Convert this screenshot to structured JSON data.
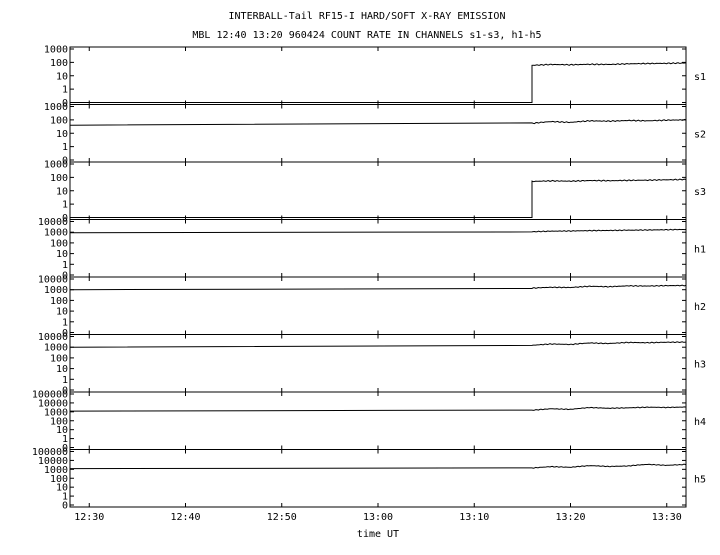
{
  "header": {
    "title_line1": "INTERBALL-Tail RF15-I HARD/SOFT X-RAY EMISSION",
    "title_line2": "MBL 12:40 13:20 960424  COUNT RATE IN CHANNELS s1-s3, h1-h5"
  },
  "chart_data": {
    "type": "line",
    "title": "INTERBALL-Tail RF15-I HARD/SOFT X-RAY EMISSION",
    "subtitle": "MBL 12:40 13:20 960424  COUNT RATE IN CHANNELS s1-s3, h1-h5",
    "xlabel": "time UT",
    "x_unit": "minutes",
    "xlim": [
      748.0,
      812.0
    ],
    "x_ticks": [
      {
        "value": 750,
        "label": "12:30"
      },
      {
        "value": 760,
        "label": "12:40"
      },
      {
        "value": 770,
        "label": "12:50"
      },
      {
        "value": 780,
        "label": "13:00"
      },
      {
        "value": 790,
        "label": "13:10"
      },
      {
        "value": 800,
        "label": "13:20"
      },
      {
        "value": 810,
        "label": "13:30"
      }
    ],
    "y_scale": "log",
    "grid": false,
    "panels": [
      {
        "name": "s1",
        "y_tick_labels": [
          "0",
          "1",
          "10",
          "100",
          "1000"
        ],
        "breakpoints_x": [
          748.0,
          796.0,
          796.0,
          812.0
        ],
        "breakpoints_y": [
          0,
          0,
          60,
          90
        ],
        "after_jump_values": [
          60,
          70,
          66,
          72,
          70,
          78,
          82,
          85,
          90
        ]
      },
      {
        "name": "s2",
        "y_tick_labels": [
          "0",
          "1",
          "10",
          "100",
          "1000"
        ],
        "breakpoints_x": [
          748.0,
          796.0,
          812.0
        ],
        "breakpoints_y": [
          40,
          40,
          90
        ],
        "after_jump_values": [
          55,
          75,
          65,
          85,
          80,
          90,
          85,
          95,
          100
        ]
      },
      {
        "name": "s3",
        "y_tick_labels": [
          "0",
          "1",
          "10",
          "100",
          "1000"
        ],
        "breakpoints_x": [
          748.0,
          796.0,
          796.0,
          812.0
        ],
        "breakpoints_y": [
          0,
          0,
          50,
          70
        ],
        "after_jump_values": [
          50,
          55,
          52,
          58,
          56,
          60,
          62,
          66,
          70
        ]
      },
      {
        "name": "h1",
        "y_tick_labels": [
          "0",
          "1",
          "10",
          "100",
          "1000",
          "10000"
        ],
        "breakpoints_x": [
          748.0,
          796.0,
          812.0
        ],
        "breakpoints_y": [
          900,
          900,
          1800
        ],
        "after_jump_values": [
          1100,
          1250,
          1300,
          1400,
          1450,
          1550,
          1600,
          1700,
          1800
        ]
      },
      {
        "name": "h2",
        "y_tick_labels": [
          "0",
          "1",
          "10",
          "100",
          "1000",
          "10000"
        ],
        "breakpoints_x": [
          748.0,
          796.0,
          812.0
        ],
        "breakpoints_y": [
          1000,
          1000,
          2500
        ],
        "after_jump_values": [
          1400,
          1700,
          1600,
          2100,
          1900,
          2300,
          2200,
          2400,
          2500
        ]
      },
      {
        "name": "h3",
        "y_tick_labels": [
          "0",
          "1",
          "10",
          "100",
          "1000",
          "10000"
        ],
        "breakpoints_x": [
          748.0,
          796.0,
          812.0
        ],
        "breakpoints_y": [
          1000,
          1000,
          3000
        ],
        "after_jump_values": [
          1500,
          2000,
          1800,
          2500,
          2200,
          2800,
          2600,
          2900,
          3000
        ]
      },
      {
        "name": "h4",
        "y_tick_labels": [
          "0",
          "1",
          "10",
          "100",
          "1000",
          "10000",
          "100000"
        ],
        "breakpoints_x": [
          748.0,
          796.0,
          812.0
        ],
        "breakpoints_y": [
          1200,
          1200,
          3500
        ],
        "after_jump_values": [
          1500,
          2200,
          1900,
          3000,
          2500,
          2800,
          3300,
          3100,
          3500
        ]
      },
      {
        "name": "h5",
        "y_tick_labels": [
          "0",
          "1",
          "10",
          "100",
          "1000",
          "10000",
          "100000"
        ],
        "breakpoints_x": [
          748.0,
          796.0,
          812.0
        ],
        "breakpoints_y": [
          1200,
          1200,
          3500
        ],
        "after_jump_values": [
          1400,
          2000,
          1700,
          2600,
          2100,
          2400,
          3600,
          2800,
          3500
        ]
      }
    ]
  }
}
